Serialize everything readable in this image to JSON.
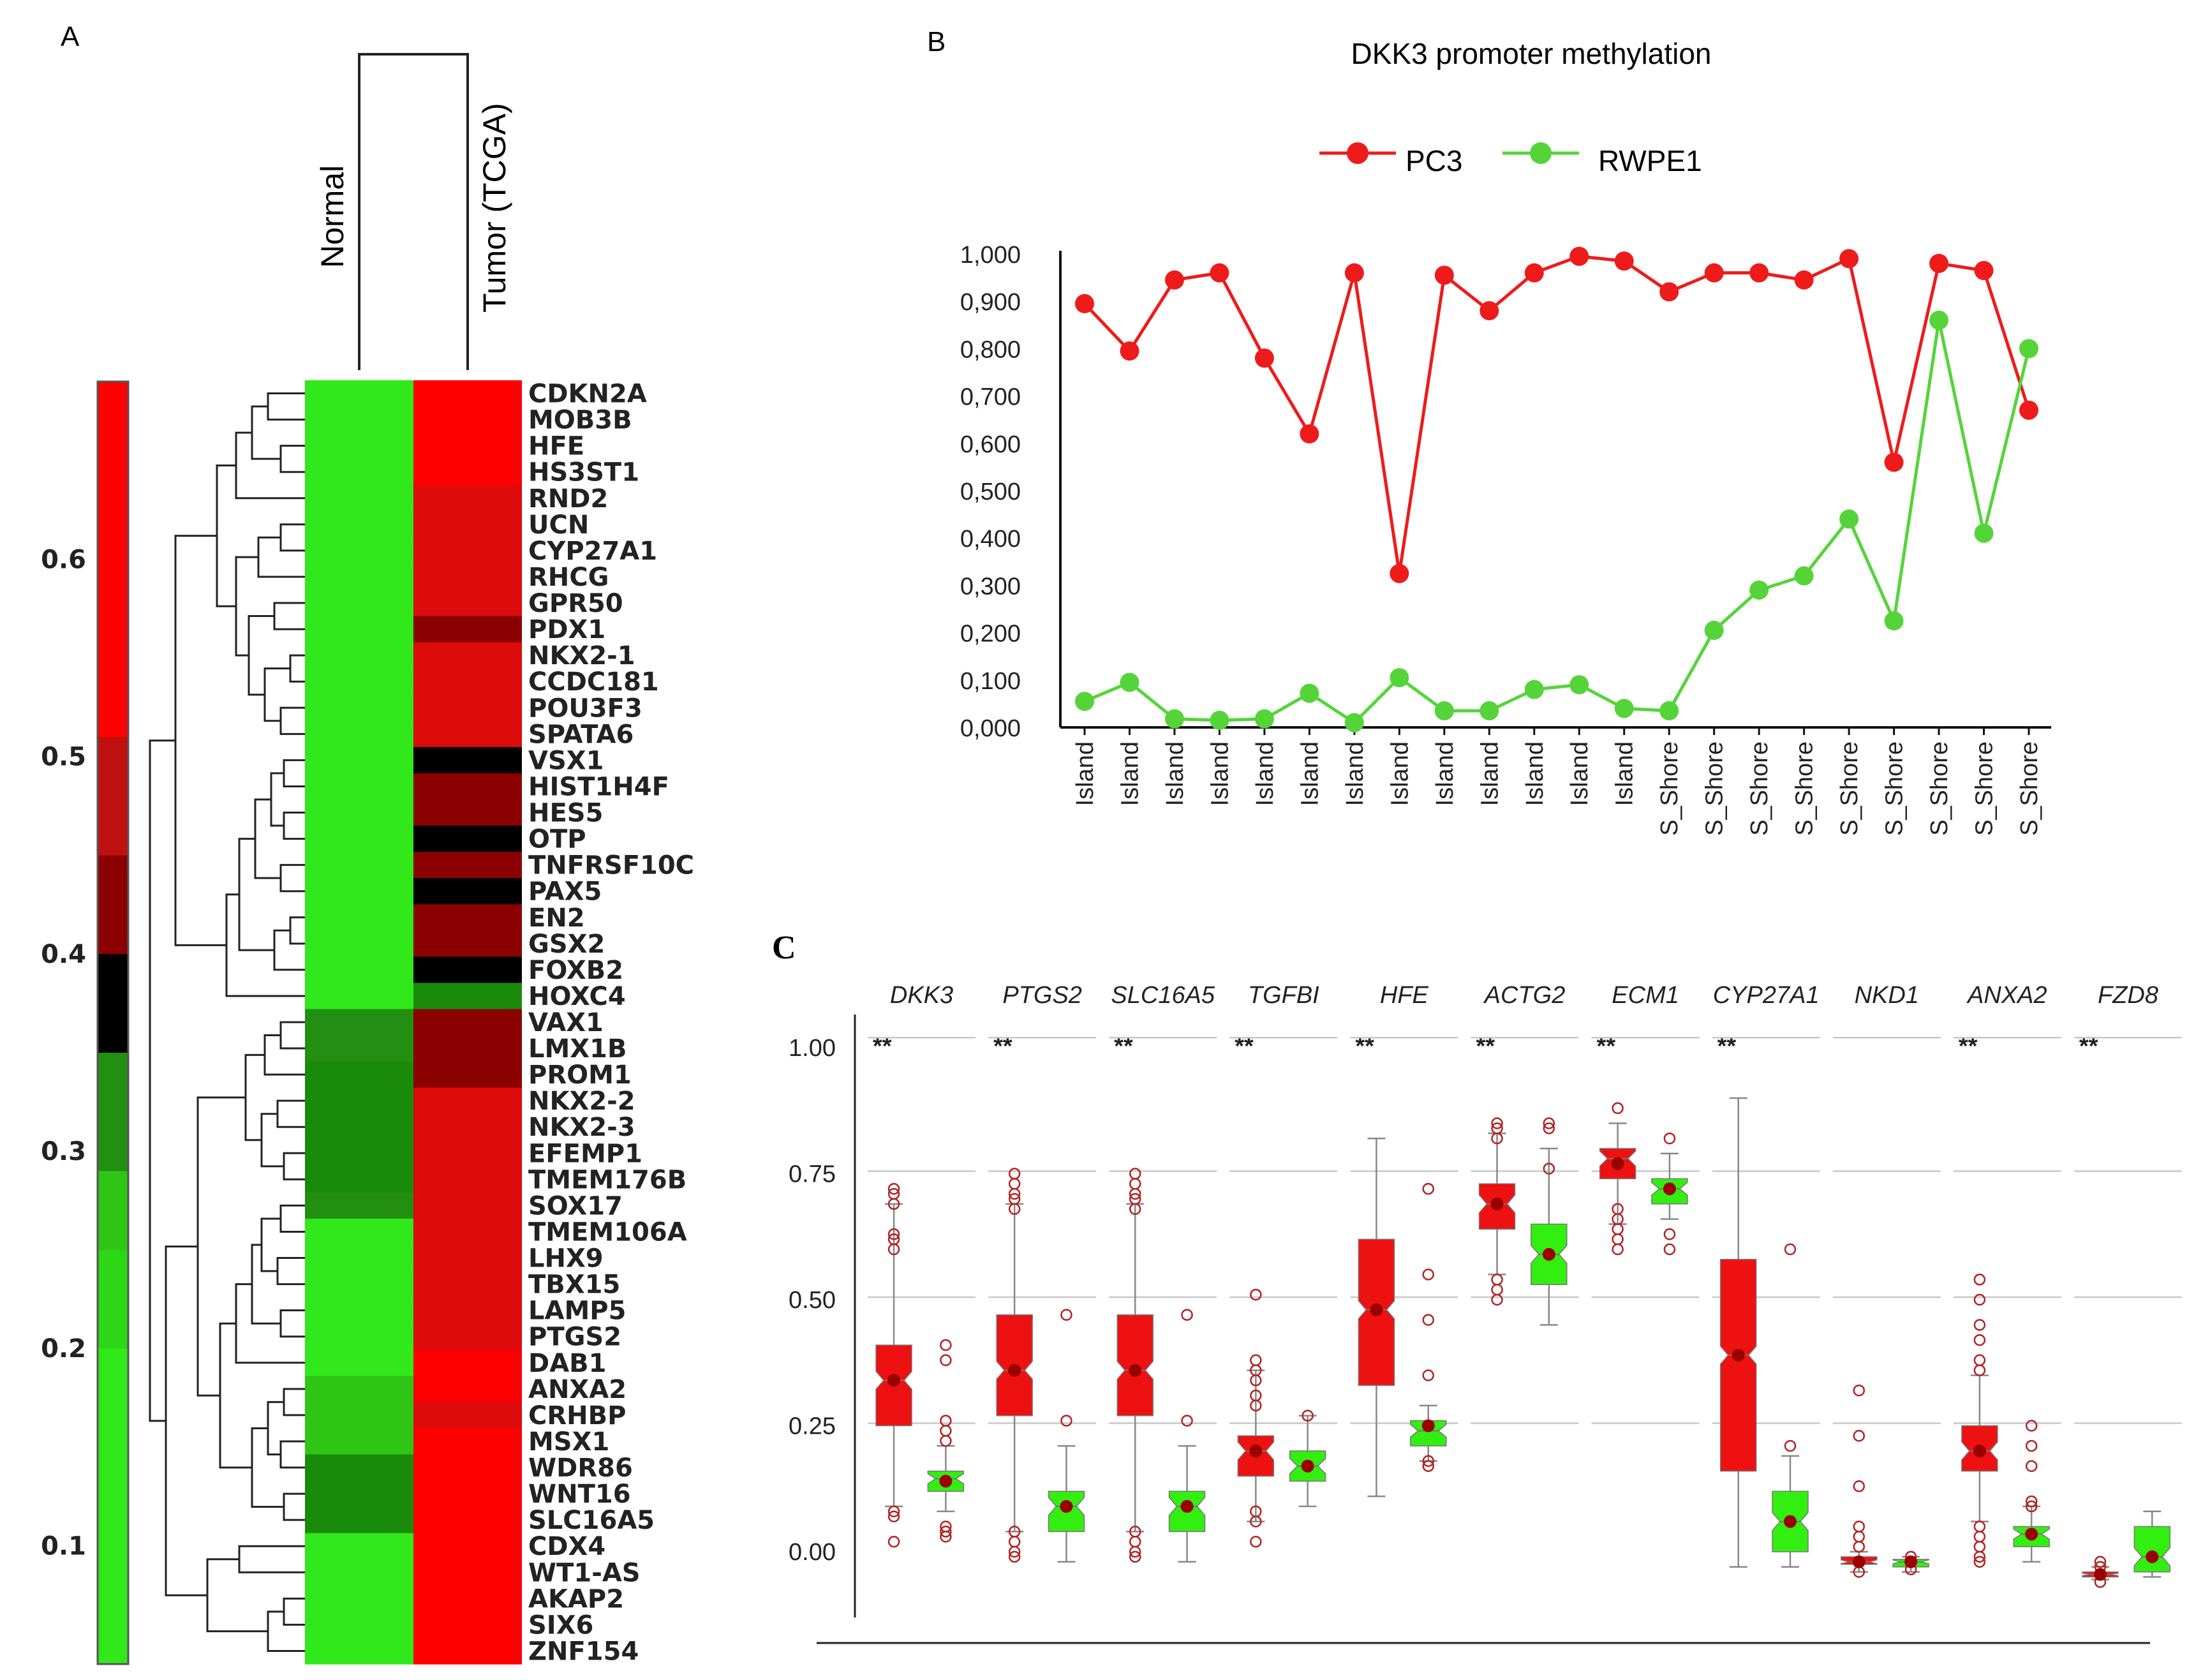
{
  "panel_labels": {
    "a": "A",
    "b": "B",
    "c": "C"
  },
  "colors": {
    "red": "#ff0000",
    "green": "#2ce80f",
    "dkred": "#8b0000",
    "black": "#000000",
    "rwpe": "#55d43a",
    "box_red": "#ee1111",
    "box_green": "#33ee11",
    "point": "#9b0000"
  },
  "chart_data": [
    {
      "type": "heatmap",
      "panel": "A",
      "columns": [
        "Normal",
        "Tumor (TCGA)"
      ],
      "colorbar": {
        "ticks": [
          "0.1",
          "0.2",
          "0.3",
          "0.4",
          "0.5",
          "0.6"
        ],
        "tick_values": [
          0.1,
          0.2,
          0.3,
          0.4,
          0.5,
          0.6
        ],
        "range": [
          0.04,
          0.69
        ]
      },
      "genes": [
        "CDKN2A",
        "MOB3B",
        "HFE",
        "HS3ST1",
        "RND2",
        "UCN",
        "CYP27A1",
        "RHCG",
        "GPR50",
        "PDX1",
        "NKX2-1",
        "CCDC181",
        "POU3F3",
        "SPATA6",
        "VSX1",
        "HIST1H4F",
        "HES5",
        "OTP",
        "TNFRSF10C",
        "PAX5",
        "EN2",
        "GSX2",
        "FOXB2",
        "HOXC4",
        "VAX1",
        "LMX1B",
        "PROM1",
        "NKX2-2",
        "NKX2-3",
        "EFEMP1",
        "TMEM176B",
        "SOX17",
        "TMEM106A",
        "LHX9",
        "TBX15",
        "LAMP5",
        "PTGS2",
        "DAB1",
        "ANXA2",
        "CRHBP",
        "MSX1",
        "WDR86",
        "WNT16",
        "SLC16A5",
        "CDX4",
        "WT1-AS",
        "AKAP2",
        "SIX6",
        "ZNF154"
      ],
      "normal": [
        0.2,
        0.2,
        0.2,
        0.2,
        0.2,
        0.2,
        0.2,
        0.2,
        0.2,
        0.2,
        0.2,
        0.2,
        0.2,
        0.2,
        0.2,
        0.2,
        0.2,
        0.2,
        0.2,
        0.2,
        0.22,
        0.22,
        0.22,
        0.22,
        0.3,
        0.3,
        0.34,
        0.34,
        0.34,
        0.34,
        0.34,
        0.3,
        0.2,
        0.2,
        0.2,
        0.2,
        0.2,
        0.2,
        0.27,
        0.27,
        0.27,
        0.34,
        0.34,
        0.34,
        0.2,
        0.2,
        0.2,
        0.2,
        0.2
      ],
      "tumor": [
        0.65,
        0.65,
        0.65,
        0.65,
        0.6,
        0.6,
        0.6,
        0.6,
        0.55,
        0.47,
        0.56,
        0.56,
        0.56,
        0.56,
        0.4,
        0.47,
        0.47,
        0.4,
        0.47,
        0.4,
        0.47,
        0.47,
        0.4,
        0.32,
        0.47,
        0.47,
        0.47,
        0.58,
        0.58,
        0.58,
        0.58,
        0.58,
        0.58,
        0.58,
        0.58,
        0.58,
        0.58,
        0.62,
        0.62,
        0.55,
        0.62,
        0.62,
        0.62,
        0.62,
        0.62,
        0.62,
        0.62,
        0.62,
        0.62
      ]
    },
    {
      "type": "line",
      "panel": "B",
      "title": "DKK3 promoter methylation",
      "ylim": [
        0,
        1
      ],
      "yticks": [
        "0,000",
        "0,100",
        "0,200",
        "0,300",
        "0,400",
        "0,500",
        "0,600",
        "0,700",
        "0,800",
        "0,900",
        "1,000"
      ],
      "categories": [
        "Island",
        "Island",
        "Island",
        "Island",
        "Island",
        "Island",
        "Island",
        "Island",
        "Island",
        "Island",
        "Island",
        "Island",
        "Island",
        "S_Shore",
        "S_Shore",
        "S_Shore",
        "S_Shore",
        "S_Shore",
        "S_Shore",
        "S_Shore",
        "S_Shore",
        "S_Shore"
      ],
      "series": [
        {
          "name": "PC3",
          "values": [
            0.895,
            0.795,
            0.945,
            0.96,
            0.78,
            0.62,
            0.96,
            0.325,
            0.955,
            0.88,
            0.96,
            0.995,
            0.985,
            0.92,
            0.96,
            0.96,
            0.945,
            0.99,
            0.56,
            0.98,
            0.965,
            0.67
          ]
        },
        {
          "name": "RWPE1",
          "values": [
            0.055,
            0.095,
            0.018,
            0.015,
            0.018,
            0.072,
            0.01,
            0.105,
            0.035,
            0.035,
            0.08,
            0.09,
            0.04,
            0.035,
            0.205,
            0.29,
            0.32,
            0.44,
            0.225,
            0.86,
            0.41,
            0.8
          ]
        }
      ]
    },
    {
      "type": "box",
      "panel": "C",
      "yticks": [
        "0.00",
        "0.25",
        "0.50",
        "0.75",
        "1.00"
      ],
      "ylim": [
        -0.12,
        1.12
      ],
      "groups": [
        {
          "name": "DKK3",
          "sig": "**",
          "tumor": {
            "lo": 0.09,
            "q1": 0.25,
            "med": 0.34,
            "q3": 0.41,
            "hi": 0.69,
            "mean": 0.34,
            "out": [
              0.72,
              0.71,
              0.69,
              0.63,
              0.62,
              0.6,
              0.08,
              0.07,
              0.02
            ]
          },
          "normal": {
            "lo": 0.08,
            "q1": 0.12,
            "med": 0.145,
            "q3": 0.16,
            "hi": 0.21,
            "mean": 0.14,
            "out": [
              0.41,
              0.38,
              0.26,
              0.24,
              0.22,
              0.05,
              0.04,
              0.03
            ]
          }
        },
        {
          "name": "PTGS2",
          "sig": "**",
          "tumor": {
            "lo": 0.04,
            "q1": 0.27,
            "med": 0.36,
            "q3": 0.47,
            "hi": 0.69,
            "mean": 0.36,
            "out": [
              0.75,
              0.73,
              0.71,
              0.7,
              0.68,
              0.04,
              0.02,
              0.0,
              -0.01
            ]
          },
          "normal": {
            "lo": -0.02,
            "q1": 0.04,
            "med": 0.09,
            "q3": 0.12,
            "hi": 0.21,
            "mean": 0.09,
            "out": [
              0.47,
              0.26
            ]
          }
        },
        {
          "name": "SLC16A5",
          "sig": "**",
          "tumor": {
            "lo": 0.04,
            "q1": 0.27,
            "med": 0.36,
            "q3": 0.47,
            "hi": 0.69,
            "mean": 0.36,
            "out": [
              0.75,
              0.73,
              0.71,
              0.7,
              0.68,
              0.04,
              0.02,
              0.0,
              -0.01
            ]
          },
          "normal": {
            "lo": -0.02,
            "q1": 0.04,
            "med": 0.09,
            "q3": 0.12,
            "hi": 0.21,
            "mean": 0.09,
            "out": [
              0.47,
              0.26
            ]
          }
        },
        {
          "name": "TGFBI",
          "sig": "**",
          "tumor": {
            "lo": 0.06,
            "q1": 0.15,
            "med": 0.2,
            "q3": 0.23,
            "hi": 0.36,
            "mean": 0.2,
            "out": [
              0.51,
              0.38,
              0.36,
              0.34,
              0.31,
              0.29,
              0.08,
              0.06,
              0.02
            ]
          },
          "normal": {
            "lo": 0.09,
            "q1": 0.14,
            "med": 0.17,
            "q3": 0.2,
            "hi": 0.27,
            "mean": 0.17,
            "out": [
              0.27
            ]
          }
        },
        {
          "name": "HFE",
          "sig": "**",
          "tumor": {
            "lo": 0.11,
            "q1": 0.33,
            "med": 0.48,
            "q3": 0.62,
            "hi": 0.82,
            "mean": 0.48,
            "out": []
          },
          "normal": {
            "lo": 0.18,
            "q1": 0.21,
            "med": 0.24,
            "q3": 0.26,
            "hi": 0.29,
            "mean": 0.25,
            "out": [
              0.72,
              0.55,
              0.46,
              0.35,
              0.18,
              0.17
            ]
          }
        },
        {
          "name": "ACTG2",
          "sig": "**",
          "tumor": {
            "lo": 0.55,
            "q1": 0.64,
            "med": 0.69,
            "q3": 0.73,
            "hi": 0.83,
            "mean": 0.69,
            "out": [
              0.85,
              0.84,
              0.82,
              0.54,
              0.52,
              0.5
            ]
          },
          "normal": {
            "lo": 0.45,
            "q1": 0.53,
            "med": 0.59,
            "q3": 0.65,
            "hi": 0.8,
            "mean": 0.59,
            "out": [
              0.85,
              0.84,
              0.76
            ]
          }
        },
        {
          "name": "ECM1",
          "sig": "**",
          "tumor": {
            "lo": 0.65,
            "q1": 0.74,
            "med": 0.78,
            "q3": 0.8,
            "hi": 0.85,
            "mean": 0.77,
            "out": [
              0.88,
              0.68,
              0.66,
              0.64,
              0.62,
              0.6
            ]
          },
          "normal": {
            "lo": 0.66,
            "q1": 0.69,
            "med": 0.72,
            "q3": 0.74,
            "hi": 0.79,
            "mean": 0.72,
            "out": [
              0.82,
              0.63,
              0.6
            ]
          }
        },
        {
          "name": "CYP27A1",
          "sig": "**",
          "tumor": {
            "lo": -0.03,
            "q1": 0.16,
            "med": 0.39,
            "q3": 0.58,
            "hi": 0.9,
            "mean": 0.39,
            "out": []
          },
          "normal": {
            "lo": -0.03,
            "q1": 0.0,
            "med": 0.06,
            "q3": 0.12,
            "hi": 0.19,
            "mean": 0.06,
            "out": [
              0.6,
              0.21
            ]
          }
        },
        {
          "name": "NKD1",
          "sig": "",
          "tumor": {
            "lo": -0.04,
            "q1": -0.025,
            "med": -0.02,
            "q3": -0.01,
            "hi": 0.0,
            "mean": -0.02,
            "out": [
              0.32,
              0.23,
              0.13,
              0.05,
              0.03,
              0.01,
              -0.04
            ]
          },
          "normal": {
            "lo": -0.04,
            "q1": -0.03,
            "med": -0.02,
            "q3": -0.015,
            "hi": -0.01,
            "mean": -0.02,
            "out": [
              -0.01,
              -0.035
            ]
          }
        },
        {
          "name": "ANXA2",
          "sig": "**",
          "tumor": {
            "lo": 0.06,
            "q1": 0.16,
            "med": 0.2,
            "q3": 0.25,
            "hi": 0.35,
            "mean": 0.2,
            "out": [
              0.54,
              0.5,
              0.45,
              0.42,
              0.38,
              0.36,
              0.05,
              0.03,
              0.01,
              -0.01,
              -0.02
            ]
          },
          "normal": {
            "lo": -0.02,
            "q1": 0.01,
            "med": 0.035,
            "q3": 0.05,
            "hi": 0.09,
            "mean": 0.035,
            "out": [
              0.25,
              0.21,
              0.17,
              0.1,
              0.09
            ]
          }
        },
        {
          "name": "FZD8",
          "sig": "**",
          "tumor": {
            "lo": -0.055,
            "q1": -0.05,
            "med": -0.045,
            "q3": -0.04,
            "hi": -0.03,
            "mean": -0.045,
            "out": [
              -0.02,
              -0.03,
              -0.06
            ]
          },
          "normal": {
            "lo": -0.05,
            "q1": -0.04,
            "med": -0.01,
            "q3": 0.05,
            "hi": 0.08,
            "mean": -0.01,
            "out": []
          }
        }
      ]
    }
  ]
}
